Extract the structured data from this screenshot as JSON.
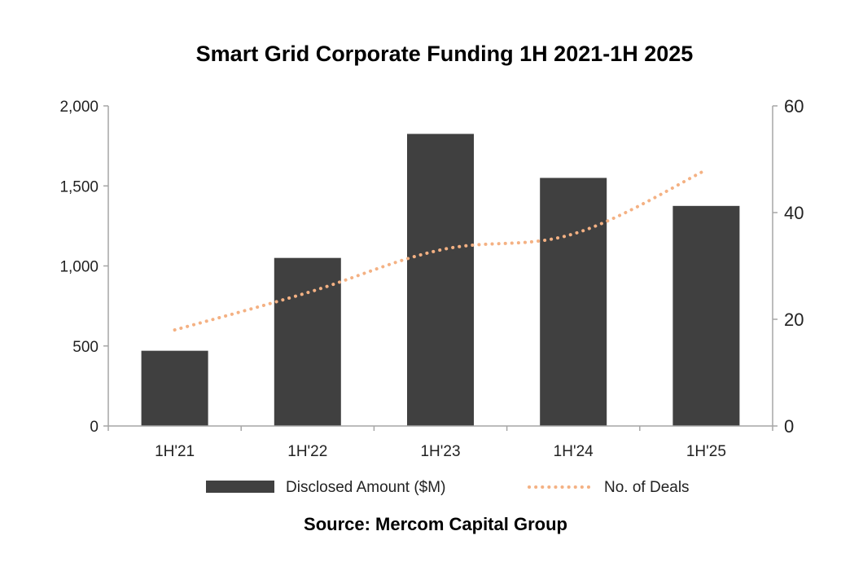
{
  "chart_data": {
    "type": "bar",
    "title": "Smart Grid Corporate Funding 1H 2021-1H 2025",
    "categories": [
      "1H'21",
      "1H'22",
      "1H'23",
      "1H'24",
      "1H'25"
    ],
    "series": [
      {
        "name": "Disclosed Amount ($M)",
        "type": "bar",
        "axis": "left",
        "color": "#404040",
        "values": [
          470,
          1050,
          1825,
          1550,
          1375
        ]
      },
      {
        "name": "No. of Deals",
        "type": "line",
        "axis": "right",
        "style": "dotted",
        "color": "#f4b183",
        "values": [
          18,
          25,
          33,
          36,
          48
        ]
      }
    ],
    "y_left": {
      "min": 0,
      "max": 2000,
      "ticks": [
        0,
        500,
        1000,
        1500,
        2000
      ],
      "tick_labels": [
        "0",
        "500",
        "1,000",
        "1,500",
        "2,000"
      ]
    },
    "y_right": {
      "min": 0,
      "max": 60,
      "ticks": [
        0,
        20,
        40,
        60
      ],
      "tick_labels": [
        "0",
        "20",
        "40",
        "60"
      ]
    },
    "legend_position": "bottom",
    "source": "Source: Mercom Capital Group"
  }
}
